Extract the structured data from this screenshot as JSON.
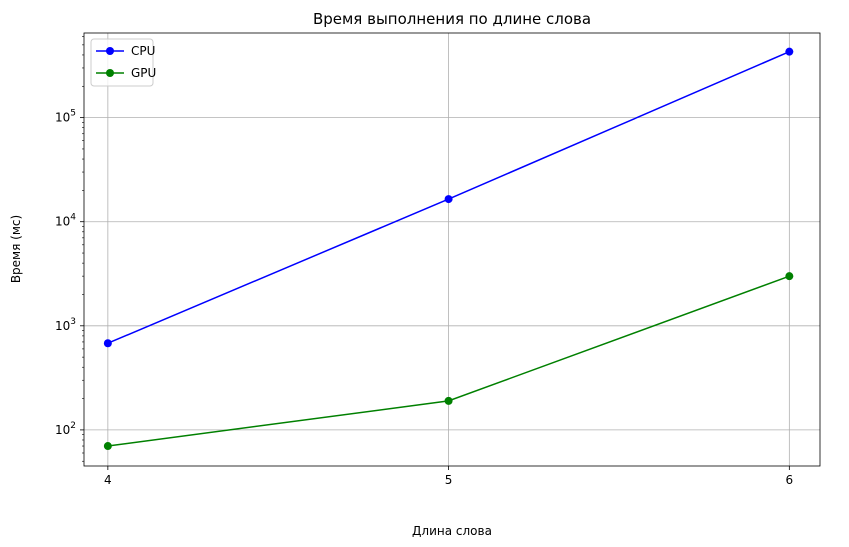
{
  "chart_data": {
    "type": "line",
    "title": "Время выполнения по длине слова",
    "xlabel": "Длина слова",
    "ylabel": "Время (мс)",
    "y_scale": "log",
    "grid": true,
    "legend_position": "top-left",
    "x": [
      4,
      5,
      6
    ],
    "x_ticks": [
      "4",
      "5",
      "6"
    ],
    "xlim": [
      3.93,
      6.09
    ],
    "ylim": [
      45,
      650000
    ],
    "y_ticks": [
      {
        "value": 100,
        "base": "10",
        "exp": "2"
      },
      {
        "value": 1000,
        "base": "10",
        "exp": "3"
      },
      {
        "value": 10000,
        "base": "10",
        "exp": "4"
      },
      {
        "value": 100000,
        "base": "10",
        "exp": "5"
      }
    ],
    "series": [
      {
        "name": "CPU",
        "color": "#0000ff",
        "values": [
          680,
          16500,
          430000
        ]
      },
      {
        "name": "GPU",
        "color": "#008000",
        "values": [
          70,
          190,
          3000
        ]
      }
    ]
  }
}
